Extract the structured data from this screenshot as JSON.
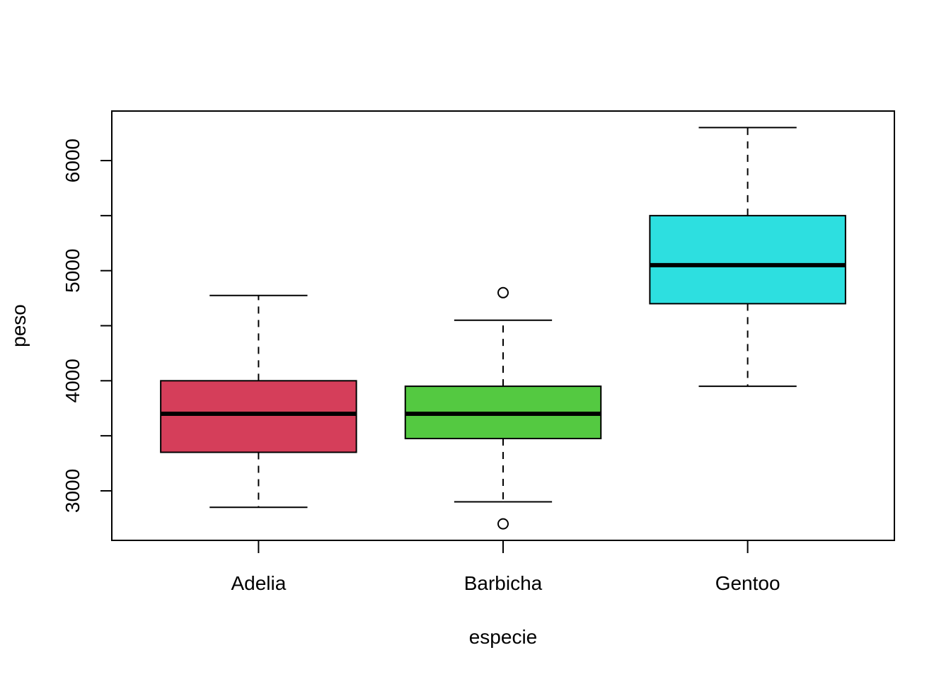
{
  "chart_data": {
    "type": "box",
    "title": "",
    "xlabel": "especie",
    "ylabel": "peso",
    "ylim": [
      2550,
      6450
    ],
    "yticks": [
      3000,
      4000,
      5000,
      6000
    ],
    "ytick_minor": [
      3500,
      4500,
      5500
    ],
    "grid": false,
    "categories": [
      "Adelia",
      "Barbicha",
      "Gentoo"
    ],
    "series": [
      {
        "category": "Adelia",
        "color": "#D53E5A",
        "whisker_low": 2850,
        "q1": 3350,
        "median": 3700,
        "q3": 4000,
        "whisker_high": 4775,
        "outliers": []
      },
      {
        "category": "Barbicha",
        "color": "#54C941",
        "whisker_low": 2900,
        "q1": 3475,
        "median": 3700,
        "q3": 3950,
        "whisker_high": 4550,
        "outliers": [
          4800,
          2700
        ]
      },
      {
        "category": "Gentoo",
        "color": "#2DDFE0",
        "whisker_low": 3950,
        "q1": 4700,
        "median": 5050,
        "q3": 5500,
        "whisker_high": 6300,
        "outliers": []
      }
    ]
  }
}
